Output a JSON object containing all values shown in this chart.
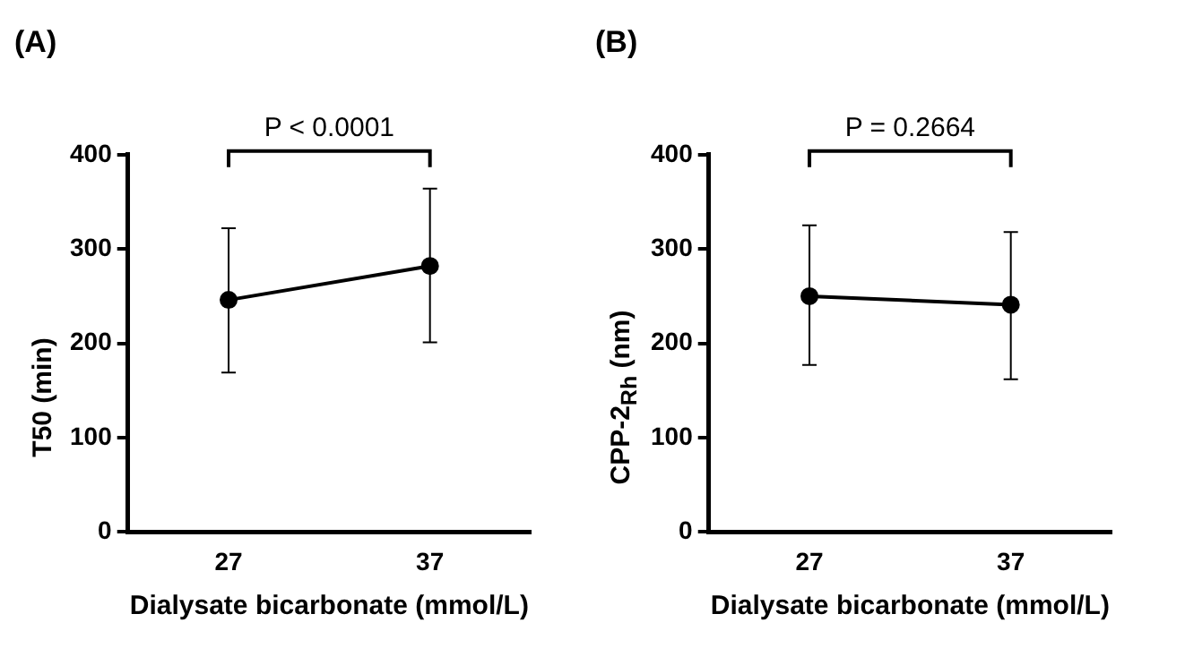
{
  "chart_data": [
    {
      "type": "line",
      "title": "(A)",
      "xlabel": "Dialysate bicarbonate (mmol/L)",
      "ylabel": "T50 (min)",
      "categories": [
        "27",
        "37"
      ],
      "series": [
        {
          "color": "#000000",
          "values": [
            246,
            282
          ],
          "errors": [
            [
              169,
              322
            ],
            [
              201,
              364
            ]
          ]
        }
      ],
      "ylim": [
        0,
        400
      ],
      "yticks": [
        0,
        100,
        200,
        300,
        400
      ],
      "grid": false,
      "legend": false,
      "marker": "circle",
      "line_style": "solid",
      "annotations": [
        "P < 0.0001"
      ]
    },
    {
      "type": "line",
      "title": "(B)",
      "xlabel": "Dialysate bicarbonate (mmol/L)",
      "ylabel": "CPP-2$_{Rh}$ (nm)",
      "categories": [
        "27",
        "37"
      ],
      "series": [
        {
          "color": "#000000",
          "values": [
            250,
            241
          ],
          "errors": [
            [
              177,
              325
            ],
            [
              162,
              318
            ]
          ]
        }
      ],
      "ylim": [
        0,
        400
      ],
      "yticks": [
        0,
        100,
        200,
        300,
        400
      ],
      "grid": false,
      "legend": false,
      "marker": "circle",
      "line_style": "solid",
      "annotations": [
        "P = 0.2664"
      ]
    }
  ]
}
